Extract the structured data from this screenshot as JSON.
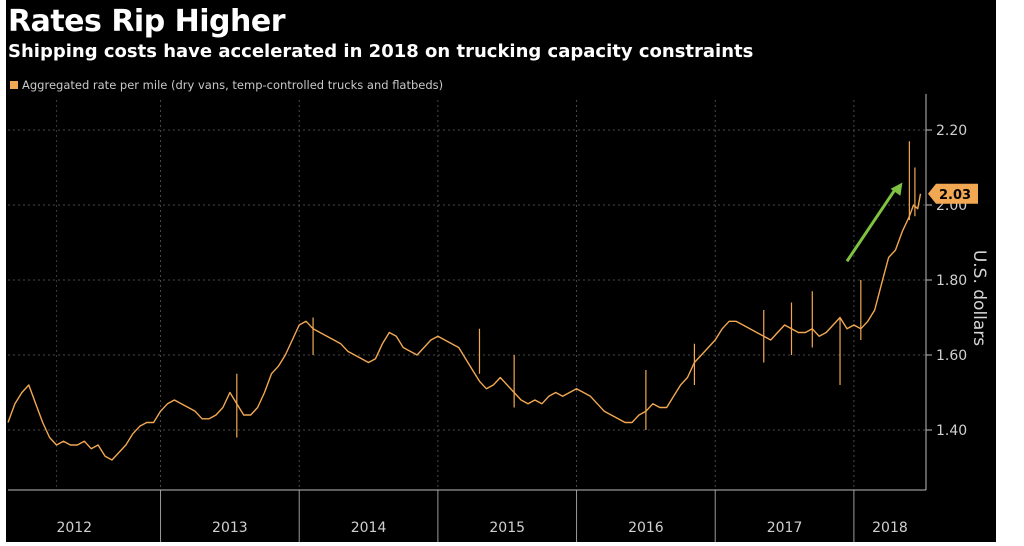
{
  "chart_data": {
    "type": "line",
    "title": "Rates Rip Higher",
    "subtitle": "Shipping costs have accelerated in 2018 on trucking capacity constraints",
    "legend": "Aggregated rate per mile (dry vans, temp-controlled trucks and flatbeds)",
    "ylabel": "U.S. dollars",
    "ylim": [
      1.24,
      2.28
    ],
    "xlim": [
      2011.9,
      2018.52
    ],
    "y_ticks": [
      "1.40",
      "1.60",
      "1.80",
      "2.00",
      "2.20"
    ],
    "x_ticks": [
      "2012",
      "2013",
      "2014",
      "2015",
      "2016",
      "2017",
      "2018"
    ],
    "last_value": "2.03",
    "grid": true,
    "y_axis_side": "right",
    "colors": {
      "line": "#f2a852",
      "arrow": "#7fc241",
      "background": "#000000"
    },
    "annotation": {
      "type": "arrow",
      "from": [
        2017.95,
        1.85
      ],
      "to": [
        2018.35,
        2.06
      ]
    },
    "series": [
      {
        "name": "Aggregated rate per mile (dry vans, temp-controlled trucks and flatbeds)",
        "x": [
          2011.9,
          2011.95,
          2012.0,
          2012.05,
          2012.1,
          2012.15,
          2012.2,
          2012.25,
          2012.3,
          2012.35,
          2012.4,
          2012.45,
          2012.5,
          2012.55,
          2012.6,
          2012.65,
          2012.7,
          2012.75,
          2012.8,
          2012.85,
          2012.9,
          2012.95,
          2013.0,
          2013.05,
          2013.1,
          2013.15,
          2013.2,
          2013.25,
          2013.3,
          2013.35,
          2013.4,
          2013.45,
          2013.5,
          2013.55,
          2013.6,
          2013.65,
          2013.7,
          2013.75,
          2013.8,
          2013.85,
          2013.9,
          2013.95,
          2014.0,
          2014.05,
          2014.1,
          2014.15,
          2014.2,
          2014.25,
          2014.3,
          2014.35,
          2014.4,
          2014.45,
          2014.5,
          2014.55,
          2014.6,
          2014.65,
          2014.7,
          2014.75,
          2014.8,
          2014.85,
          2014.9,
          2014.95,
          2015.0,
          2015.05,
          2015.1,
          2015.15,
          2015.2,
          2015.25,
          2015.3,
          2015.35,
          2015.4,
          2015.45,
          2015.5,
          2015.55,
          2015.6,
          2015.65,
          2015.7,
          2015.75,
          2015.8,
          2015.85,
          2015.9,
          2015.95,
          2016.0,
          2016.05,
          2016.1,
          2016.15,
          2016.2,
          2016.25,
          2016.3,
          2016.35,
          2016.4,
          2016.45,
          2016.5,
          2016.55,
          2016.6,
          2016.65,
          2016.7,
          2016.75,
          2016.8,
          2016.85,
          2016.9,
          2016.95,
          2017.0,
          2017.05,
          2017.1,
          2017.15,
          2017.2,
          2017.25,
          2017.3,
          2017.35,
          2017.4,
          2017.45,
          2017.5,
          2017.55,
          2017.6,
          2017.65,
          2017.7,
          2017.75,
          2017.8,
          2017.85,
          2017.9,
          2017.95,
          2018.0,
          2018.05,
          2018.1,
          2018.15,
          2018.2,
          2018.25,
          2018.3,
          2018.35,
          2018.4,
          2018.43,
          2018.46,
          2018.48
        ],
        "values": [
          1.42,
          1.47,
          1.5,
          1.52,
          1.47,
          1.42,
          1.38,
          1.36,
          1.37,
          1.36,
          1.36,
          1.37,
          1.35,
          1.36,
          1.33,
          1.32,
          1.34,
          1.36,
          1.39,
          1.41,
          1.42,
          1.42,
          1.45,
          1.47,
          1.48,
          1.47,
          1.46,
          1.45,
          1.43,
          1.43,
          1.44,
          1.46,
          1.5,
          1.47,
          1.44,
          1.44,
          1.46,
          1.5,
          1.55,
          1.57,
          1.6,
          1.64,
          1.68,
          1.69,
          1.67,
          1.66,
          1.65,
          1.64,
          1.63,
          1.61,
          1.6,
          1.59,
          1.58,
          1.59,
          1.63,
          1.66,
          1.65,
          1.62,
          1.61,
          1.6,
          1.62,
          1.64,
          1.65,
          1.64,
          1.63,
          1.62,
          1.59,
          1.56,
          1.53,
          1.51,
          1.52,
          1.54,
          1.52,
          1.5,
          1.48,
          1.47,
          1.48,
          1.47,
          1.49,
          1.5,
          1.49,
          1.5,
          1.51,
          1.5,
          1.49,
          1.47,
          1.45,
          1.44,
          1.43,
          1.42,
          1.42,
          1.44,
          1.45,
          1.47,
          1.46,
          1.46,
          1.49,
          1.52,
          1.54,
          1.58,
          1.6,
          1.62,
          1.64,
          1.67,
          1.69,
          1.69,
          1.68,
          1.67,
          1.66,
          1.65,
          1.64,
          1.66,
          1.68,
          1.67,
          1.66,
          1.66,
          1.67,
          1.65,
          1.66,
          1.68,
          1.7,
          1.67,
          1.68,
          1.67,
          1.69,
          1.72,
          1.79,
          1.86,
          1.88,
          1.93,
          1.97,
          2.0,
          1.99,
          2.03
        ]
      }
    ],
    "spikes": [
      [
        2013.55,
        1.38,
        1.55
      ],
      [
        2014.1,
        1.6,
        1.7
      ],
      [
        2015.3,
        1.55,
        1.67
      ],
      [
        2015.55,
        1.46,
        1.6
      ],
      [
        2016.5,
        1.4,
        1.56
      ],
      [
        2016.85,
        1.52,
        1.63
      ],
      [
        2017.35,
        1.58,
        1.72
      ],
      [
        2017.55,
        1.6,
        1.74
      ],
      [
        2017.7,
        1.62,
        1.77
      ],
      [
        2017.9,
        1.52,
        1.7
      ],
      [
        2018.05,
        1.64,
        1.8
      ],
      [
        2018.4,
        1.96,
        2.17
      ],
      [
        2018.44,
        1.97,
        2.1
      ]
    ]
  }
}
